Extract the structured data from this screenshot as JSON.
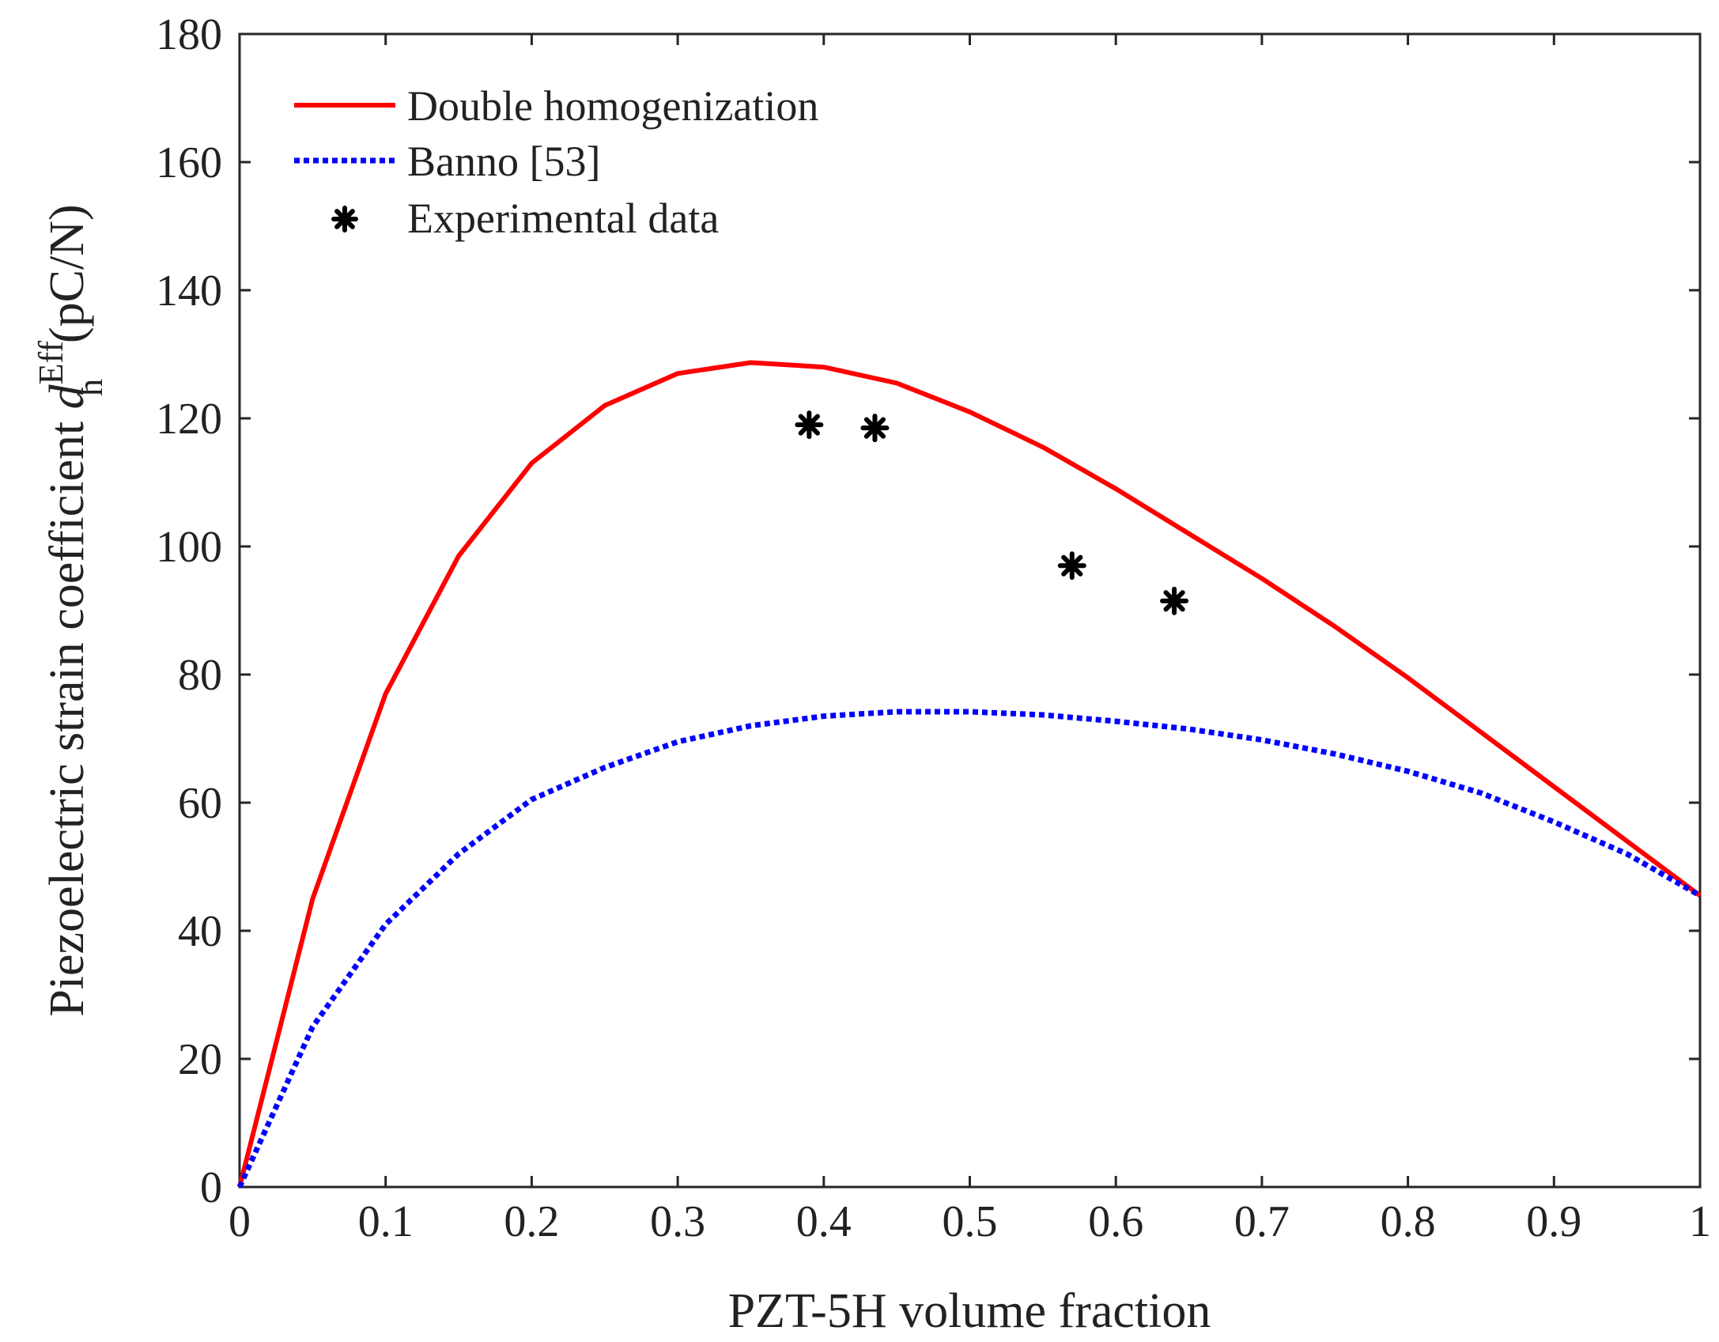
{
  "chart_data": {
    "type": "line",
    "xlabel": "PZT-5H volume fraction",
    "ylabel": {
      "prefix": "Piezoelectric strain coefficient ",
      "symbol": "d",
      "subscript": "h",
      "superscript": "Eff",
      "unit": "(pC/N)"
    },
    "xlim": [
      0,
      1
    ],
    "ylim": [
      0,
      180
    ],
    "xticks": [
      0,
      0.1,
      0.2,
      0.3,
      0.4,
      0.5,
      0.6,
      0.7,
      0.8,
      0.9,
      1
    ],
    "xtick_labels": [
      "0",
      "0.1",
      "0.2",
      "0.3",
      "0.4",
      "0.5",
      "0.6",
      "0.7",
      "0.8",
      "0.9",
      "1"
    ],
    "yticks": [
      0,
      20,
      40,
      60,
      80,
      100,
      120,
      140,
      160,
      180
    ],
    "ytick_labels": [
      "0",
      "20",
      "40",
      "60",
      "80",
      "100",
      "120",
      "140",
      "160",
      "180"
    ],
    "grid": false,
    "legend_position": "top-left",
    "series": [
      {
        "name": "Double homogenization",
        "style": "solid",
        "color": "#ff0000",
        "x": [
          0,
          0.05,
          0.1,
          0.15,
          0.2,
          0.25,
          0.3,
          0.35,
          0.4,
          0.45,
          0.5,
          0.55,
          0.6,
          0.65,
          0.7,
          0.75,
          0.8,
          0.85,
          0.9,
          0.95,
          1.0
        ],
        "y": [
          0,
          45,
          77,
          98.5,
          113,
          122,
          127,
          128.7,
          128,
          125.5,
          121,
          115.5,
          109,
          102,
          95,
          87.5,
          79.5,
          71,
          62.5,
          54,
          45.5
        ]
      },
      {
        "name": "Banno [53]",
        "style": "dotted",
        "color": "#0000ff",
        "x": [
          0,
          0.05,
          0.1,
          0.15,
          0.2,
          0.25,
          0.3,
          0.35,
          0.4,
          0.45,
          0.5,
          0.55,
          0.6,
          0.65,
          0.7,
          0.75,
          0.8,
          0.85,
          0.9,
          0.95,
          1.0
        ],
        "y": [
          0,
          25,
          41,
          52,
          60.5,
          65.5,
          69.5,
          72,
          73.5,
          74.2,
          74.2,
          73.7,
          72.7,
          71.5,
          69.8,
          67.6,
          64.9,
          61.5,
          57,
          52,
          45.5
        ]
      },
      {
        "name": "Experimental data",
        "style": "markers",
        "color": "#000000",
        "marker": "asterisk",
        "x": [
          0.39,
          0.435,
          0.57,
          0.64
        ],
        "y": [
          119,
          118.5,
          97,
          91.5
        ]
      }
    ]
  }
}
